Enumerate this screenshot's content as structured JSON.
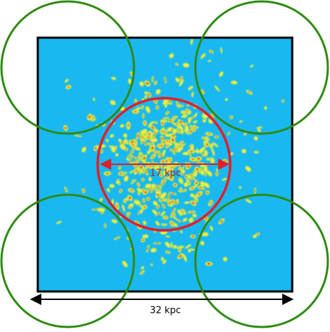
{
  "labels": {
    "inner_diameter": "17 kpc",
    "box_width": "32 kpc"
  }
}
